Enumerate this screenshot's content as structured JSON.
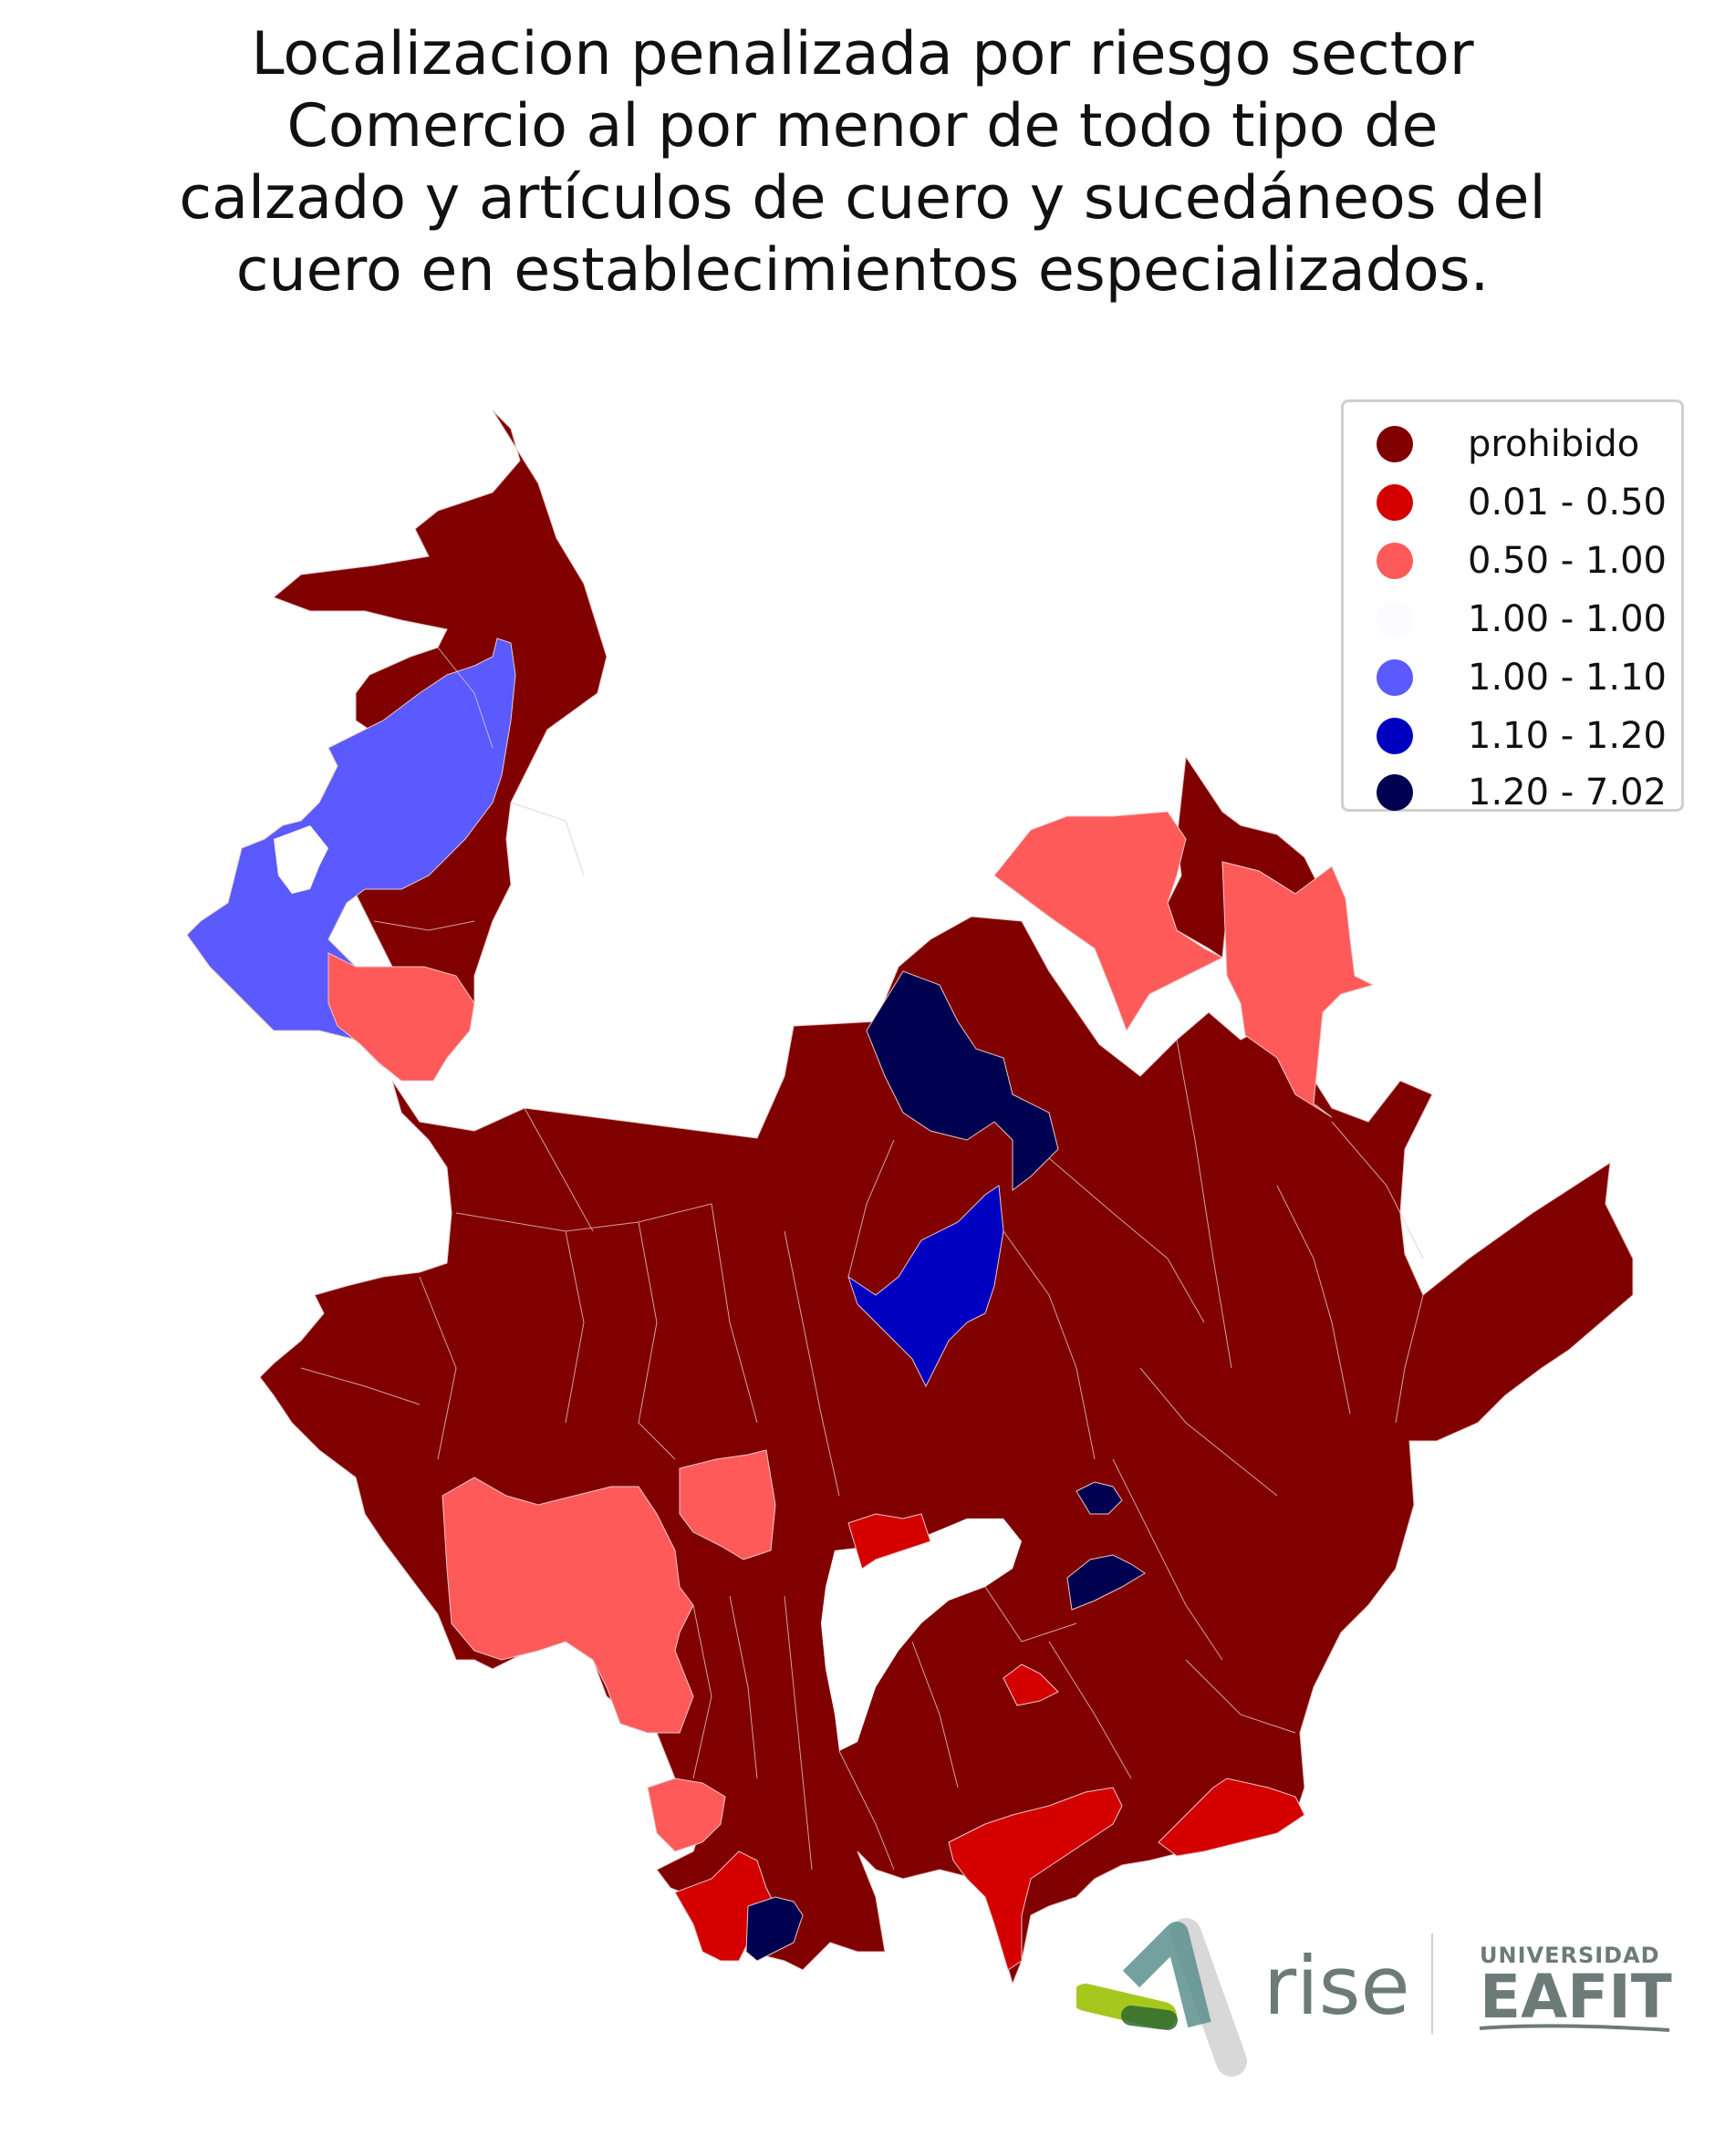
{
  "title_lines": [
    "Localizacion penalizada por riesgo sector",
    "Comercio al por menor de todo tipo de",
    "calzado y artículos de cuero y sucedáneos del",
    "cuero en establecimientos especializados."
  ],
  "legend": [
    {
      "label": "prohibido",
      "color": "#800000"
    },
    {
      "label": "0.01 - 0.50",
      "color": "#d40000"
    },
    {
      "label": "0.50 - 1.00",
      "color": "#ff5a5a"
    },
    {
      "label": "1.00 - 1.00",
      "color": "#fbfbff"
    },
    {
      "label": "1.00 - 1.10",
      "color": "#5a5aff"
    },
    {
      "label": "1.10 - 1.20",
      "color": "#0000c0"
    },
    {
      "label": "1.20 - 7.02",
      "color": "#000050"
    }
  ],
  "logos": {
    "rise": "rise",
    "eafit_top": "UNIVERSIDAD",
    "eafit_main": "EAFIT"
  }
}
